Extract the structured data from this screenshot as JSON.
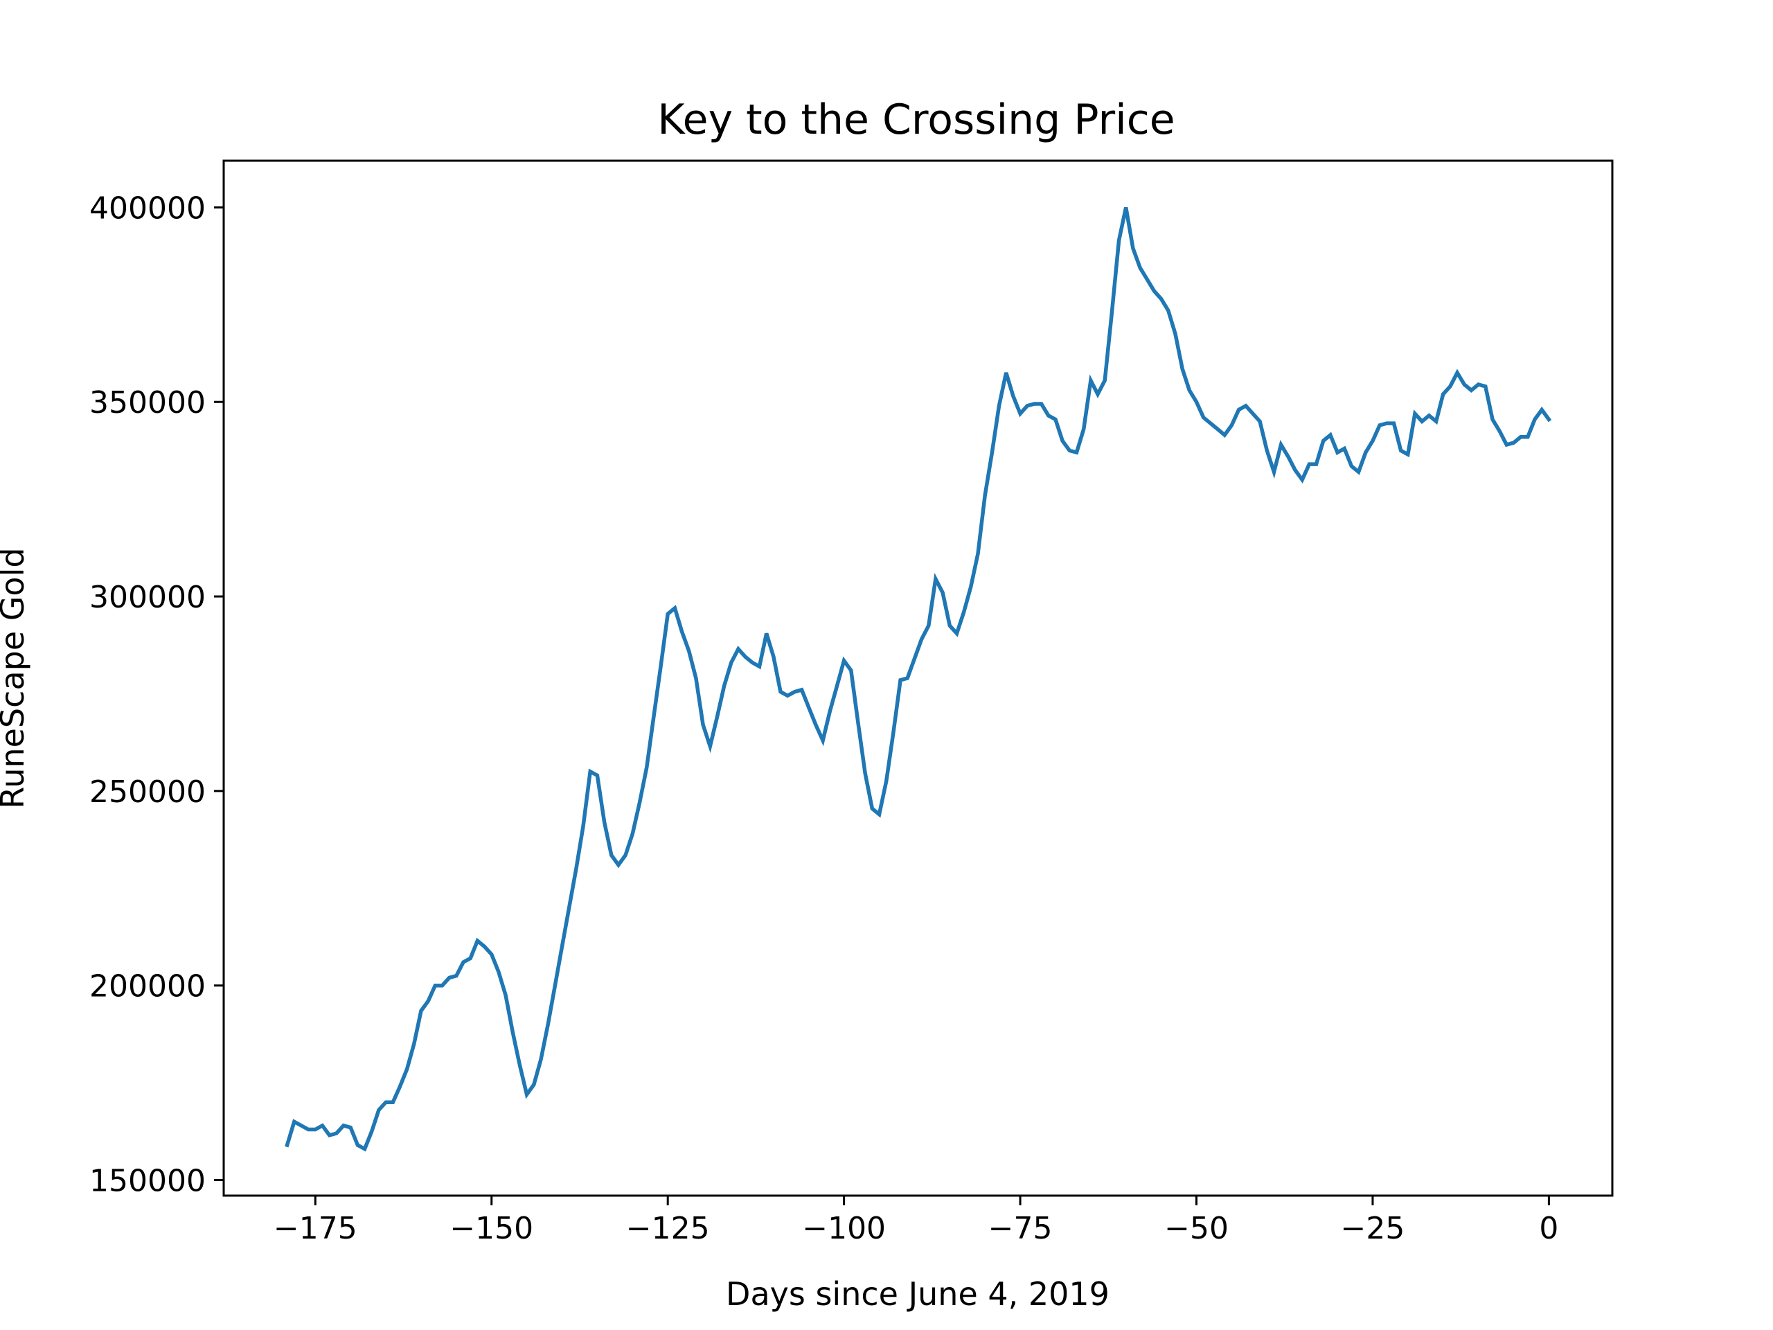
{
  "chart_data": {
    "type": "line",
    "title": "Key to the Crossing Price",
    "xlabel": "Days since June 4, 2019",
    "ylabel": "RuneScape Gold",
    "xlim": [
      -188,
      9
    ],
    "ylim": [
      146000,
      412000
    ],
    "x_ticks": [
      -175,
      -150,
      -125,
      -100,
      -75,
      -50,
      -25,
      0
    ],
    "x_tick_labels": [
      "−175",
      "−150",
      "−125",
      "−100",
      "−75",
      "−50",
      "−25",
      "0"
    ],
    "y_ticks": [
      150000,
      200000,
      250000,
      300000,
      350000,
      400000
    ],
    "y_tick_labels": [
      "150000",
      "200000",
      "250000",
      "300000",
      "350000",
      "400000"
    ],
    "grid": false,
    "legend": "none",
    "series": [
      {
        "color": "#1f77b4",
        "points": [
          [
            -179,
            159000
          ],
          [
            -178,
            165000
          ],
          [
            -177,
            164000
          ],
          [
            -176,
            163000
          ],
          [
            -175,
            163000
          ],
          [
            -174,
            164000
          ],
          [
            -173,
            161500
          ],
          [
            -172,
            162000
          ],
          [
            -171,
            164000
          ],
          [
            -170,
            163500
          ],
          [
            -169,
            159000
          ],
          [
            -168,
            158000
          ],
          [
            -167,
            162500
          ],
          [
            -166,
            168000
          ],
          [
            -165,
            170000
          ],
          [
            -164,
            170000
          ],
          [
            -163,
            174000
          ],
          [
            -162,
            178500
          ],
          [
            -161,
            185000
          ],
          [
            -160,
            193500
          ],
          [
            -159,
            196000
          ],
          [
            -158,
            200000
          ],
          [
            -157,
            200000
          ],
          [
            -156,
            202000
          ],
          [
            -155,
            202500
          ],
          [
            -154,
            206000
          ],
          [
            -153,
            207000
          ],
          [
            -152,
            211500
          ],
          [
            -151,
            210000
          ],
          [
            -150,
            208000
          ],
          [
            -149,
            203500
          ],
          [
            -148,
            197500
          ],
          [
            -147,
            188000
          ],
          [
            -146,
            179500
          ],
          [
            -145,
            172000
          ],
          [
            -144,
            174500
          ],
          [
            -143,
            181000
          ],
          [
            -142,
            190000
          ],
          [
            -141,
            200000
          ],
          [
            -140,
            210000
          ],
          [
            -139,
            220000
          ],
          [
            -138,
            230000
          ],
          [
            -137,
            241000
          ],
          [
            -136,
            255000
          ],
          [
            -135,
            254000
          ],
          [
            -134,
            242000
          ],
          [
            -133,
            233500
          ],
          [
            -132,
            231000
          ],
          [
            -131,
            233500
          ],
          [
            -130,
            239000
          ],
          [
            -129,
            247000
          ],
          [
            -128,
            256000
          ],
          [
            -127,
            269000
          ],
          [
            -126,
            282000
          ],
          [
            -125,
            295500
          ],
          [
            -124,
            297000
          ],
          [
            -123,
            291000
          ],
          [
            -122,
            286000
          ],
          [
            -121,
            279000
          ],
          [
            -120,
            267000
          ],
          [
            -119,
            261500
          ],
          [
            -118,
            269000
          ],
          [
            -117,
            277000
          ],
          [
            -116,
            283000
          ],
          [
            -115,
            286500
          ],
          [
            -114,
            284500
          ],
          [
            -113,
            283000
          ],
          [
            -112,
            282000
          ],
          [
            -111,
            290500
          ],
          [
            -110,
            284500
          ],
          [
            -109,
            275500
          ],
          [
            -108,
            274500
          ],
          [
            -107,
            275500
          ],
          [
            -106,
            276000
          ],
          [
            -105,
            271500
          ],
          [
            -104,
            267000
          ],
          [
            -103,
            263000
          ],
          [
            -102,
            270500
          ],
          [
            -101,
            277000
          ],
          [
            -100,
            283500
          ],
          [
            -99,
            281000
          ],
          [
            -98,
            267500
          ],
          [
            -97,
            254500
          ],
          [
            -96,
            245500
          ],
          [
            -95,
            244000
          ],
          [
            -94,
            252500
          ],
          [
            -93,
            265000
          ],
          [
            -92,
            278500
          ],
          [
            -91,
            279000
          ],
          [
            -90,
            284000
          ],
          [
            -89,
            289000
          ],
          [
            -88,
            292500
          ],
          [
            -87,
            304500
          ],
          [
            -86,
            301000
          ],
          [
            -85,
            292500
          ],
          [
            -84,
            290500
          ],
          [
            -83,
            296000
          ],
          [
            -82,
            302500
          ],
          [
            -81,
            311000
          ],
          [
            -80,
            326000
          ],
          [
            -79,
            337000
          ],
          [
            -78,
            349000
          ],
          [
            -77,
            357500
          ],
          [
            -76,
            351500
          ],
          [
            -75,
            347000
          ],
          [
            -74,
            349000
          ],
          [
            -73,
            349500
          ],
          [
            -72,
            349500
          ],
          [
            -71,
            346500
          ],
          [
            -70,
            345500
          ],
          [
            -69,
            340000
          ],
          [
            -68,
            337500
          ],
          [
            -67,
            337000
          ],
          [
            -66,
            343000
          ],
          [
            -65,
            355500
          ],
          [
            -64,
            352000
          ],
          [
            -63,
            355500
          ],
          [
            -62,
            373000
          ],
          [
            -61,
            391500
          ],
          [
            -60,
            400000
          ],
          [
            -59,
            389500
          ],
          [
            -58,
            384500
          ],
          [
            -57,
            381500
          ],
          [
            -56,
            378500
          ],
          [
            -55,
            376500
          ],
          [
            -54,
            373500
          ],
          [
            -53,
            367500
          ],
          [
            -52,
            358500
          ],
          [
            -51,
            353000
          ],
          [
            -50,
            350000
          ],
          [
            -49,
            346000
          ],
          [
            -48,
            344500
          ],
          [
            -47,
            343000
          ],
          [
            -46,
            341500
          ],
          [
            -45,
            344000
          ],
          [
            -44,
            348000
          ],
          [
            -43,
            349000
          ],
          [
            -42,
            347000
          ],
          [
            -41,
            345000
          ],
          [
            -40,
            337500
          ],
          [
            -39,
            332000
          ],
          [
            -38,
            339000
          ],
          [
            -37,
            336000
          ],
          [
            -36,
            332500
          ],
          [
            -35,
            330000
          ],
          [
            -34,
            334000
          ],
          [
            -33,
            334000
          ],
          [
            -32,
            340000
          ],
          [
            -31,
            341500
          ],
          [
            -30,
            337000
          ],
          [
            -29,
            338000
          ],
          [
            -28,
            333500
          ],
          [
            -27,
            332000
          ],
          [
            -26,
            337000
          ],
          [
            -25,
            340000
          ],
          [
            -24,
            344000
          ],
          [
            -23,
            344500
          ],
          [
            -22,
            344500
          ],
          [
            -21,
            337500
          ],
          [
            -20,
            336500
          ],
          [
            -19,
            347000
          ],
          [
            -18,
            345000
          ],
          [
            -17,
            346500
          ],
          [
            -16,
            345000
          ],
          [
            -15,
            352000
          ],
          [
            -14,
            354000
          ],
          [
            -13,
            357500
          ],
          [
            -12,
            354500
          ],
          [
            -11,
            353000
          ],
          [
            -10,
            354500
          ],
          [
            -9,
            354000
          ],
          [
            -8,
            345500
          ],
          [
            -7,
            342500
          ],
          [
            -6,
            339000
          ],
          [
            -5,
            339500
          ],
          [
            -4,
            341000
          ],
          [
            -3,
            341000
          ],
          [
            -2,
            345500
          ],
          [
            -1,
            348000
          ],
          [
            0,
            345500
          ]
        ]
      }
    ]
  }
}
